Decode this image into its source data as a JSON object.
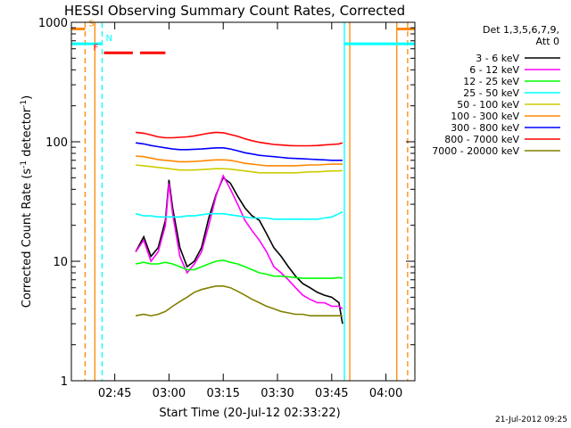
{
  "chart_data": {
    "type": "line",
    "title": "HESSI Observing Summary Count Rates, Corrected",
    "xlabel": "Start Time (20-Jul-12 02:33:22)",
    "ylabel": "Corrected Count Rate (s⁻¹ detector⁻¹)",
    "ylabel_parts": {
      "main": "Corrected Count Rate (s",
      "exp1": "-1",
      "mid": " detector",
      "exp2": "-1",
      "end": ")"
    },
    "yscale": "log",
    "ylim": [
      1,
      1000
    ],
    "xlim_minutes": [
      0,
      95
    ],
    "x_ticks": [
      {
        "minute": 12,
        "label": "02:45"
      },
      {
        "minute": 27,
        "label": "03:00"
      },
      {
        "minute": 42,
        "label": "03:15"
      },
      {
        "minute": 57,
        "label": "03:30"
      },
      {
        "minute": 72,
        "label": "03:45"
      },
      {
        "minute": 87,
        "label": "04:00"
      }
    ],
    "y_ticks": [
      {
        "value": 1,
        "label": "1"
      },
      {
        "value": 10,
        "label": "10"
      },
      {
        "value": 100,
        "label": "100"
      },
      {
        "value": 1000,
        "label": "1000"
      }
    ],
    "legend_header": [
      "Det 1,3,5,6,7,9,",
      "Att 0"
    ],
    "series": [
      {
        "name": "3 - 6 keV",
        "color": "#000000",
        "points": [
          [
            17.8,
            12
          ],
          [
            20,
            16
          ],
          [
            22,
            11
          ],
          [
            24,
            13
          ],
          [
            26,
            22
          ],
          [
            27,
            48
          ],
          [
            28,
            28
          ],
          [
            30,
            13
          ],
          [
            32,
            9
          ],
          [
            34,
            10
          ],
          [
            36,
            13
          ],
          [
            38,
            23
          ],
          [
            40,
            36
          ],
          [
            42,
            50
          ],
          [
            44,
            45
          ],
          [
            46,
            35
          ],
          [
            48,
            28
          ],
          [
            50,
            24
          ],
          [
            52,
            22
          ],
          [
            54,
            17
          ],
          [
            56,
            13
          ],
          [
            58,
            11
          ],
          [
            60,
            9
          ],
          [
            62,
            7.5
          ],
          [
            64,
            6.5
          ],
          [
            66,
            6
          ],
          [
            68,
            5.5
          ],
          [
            70,
            5.2
          ],
          [
            72,
            5
          ],
          [
            74,
            4.5
          ],
          [
            75,
            3
          ]
        ]
      },
      {
        "name": "6 - 12 keV",
        "color": "#ff00ff",
        "points": [
          [
            17.8,
            12
          ],
          [
            20,
            15
          ],
          [
            22,
            10
          ],
          [
            24,
            12
          ],
          [
            26,
            20
          ],
          [
            27,
            45
          ],
          [
            28,
            25
          ],
          [
            30,
            11
          ],
          [
            32,
            8
          ],
          [
            34,
            9.5
          ],
          [
            36,
            12
          ],
          [
            38,
            20
          ],
          [
            40,
            35
          ],
          [
            42,
            52
          ],
          [
            44,
            40
          ],
          [
            46,
            30
          ],
          [
            48,
            22
          ],
          [
            50,
            18
          ],
          [
            52,
            15
          ],
          [
            54,
            12
          ],
          [
            56,
            9
          ],
          [
            58,
            8
          ],
          [
            60,
            7
          ],
          [
            62,
            6
          ],
          [
            64,
            5.2
          ],
          [
            66,
            4.8
          ],
          [
            68,
            4.5
          ],
          [
            70,
            4.5
          ],
          [
            72,
            4.2
          ],
          [
            74,
            4.2
          ],
          [
            75,
            4
          ]
        ]
      },
      {
        "name": "12 - 25 keV",
        "color": "#00ff00",
        "points": [
          [
            17.8,
            9.5
          ],
          [
            20,
            9.8
          ],
          [
            22,
            9.5
          ],
          [
            24,
            9.5
          ],
          [
            26,
            9.8
          ],
          [
            28,
            9.5
          ],
          [
            30,
            9
          ],
          [
            32,
            8.5
          ],
          [
            34,
            8.5
          ],
          [
            36,
            9
          ],
          [
            38,
            9.5
          ],
          [
            40,
            10
          ],
          [
            42,
            10.2
          ],
          [
            44,
            9.8
          ],
          [
            46,
            9.5
          ],
          [
            48,
            9
          ],
          [
            50,
            8.5
          ],
          [
            52,
            8
          ],
          [
            54,
            7.8
          ],
          [
            56,
            7.5
          ],
          [
            58,
            7.5
          ],
          [
            60,
            7.4
          ],
          [
            62,
            7.3
          ],
          [
            64,
            7.2
          ],
          [
            66,
            7.2
          ],
          [
            68,
            7.2
          ],
          [
            70,
            7.2
          ],
          [
            72,
            7.2
          ],
          [
            74,
            7.3
          ],
          [
            75,
            7.2
          ]
        ]
      },
      {
        "name": "25 - 50 keV",
        "color": "#00ffff",
        "points": [
          [
            17.8,
            25
          ],
          [
            20,
            24
          ],
          [
            22,
            24
          ],
          [
            24,
            23.5
          ],
          [
            26,
            23.5
          ],
          [
            28,
            23.5
          ],
          [
            30,
            23.5
          ],
          [
            32,
            24
          ],
          [
            34,
            24
          ],
          [
            36,
            24.5
          ],
          [
            38,
            25
          ],
          [
            40,
            25
          ],
          [
            42,
            25
          ],
          [
            44,
            24.5
          ],
          [
            46,
            24
          ],
          [
            48,
            23.5
          ],
          [
            50,
            23
          ],
          [
            52,
            23
          ],
          [
            54,
            23
          ],
          [
            56,
            22.5
          ],
          [
            58,
            22.5
          ],
          [
            60,
            22.5
          ],
          [
            62,
            22.5
          ],
          [
            64,
            22.5
          ],
          [
            66,
            22.5
          ],
          [
            68,
            22.5
          ],
          [
            70,
            23
          ],
          [
            72,
            23.5
          ],
          [
            74,
            25
          ],
          [
            75,
            26
          ]
        ]
      },
      {
        "name": "50 - 100 keV",
        "color": "#cccc00",
        "points": [
          [
            17.8,
            64
          ],
          [
            20,
            63
          ],
          [
            22,
            62
          ],
          [
            24,
            61
          ],
          [
            26,
            60
          ],
          [
            28,
            59
          ],
          [
            30,
            58
          ],
          [
            32,
            58
          ],
          [
            34,
            58
          ],
          [
            36,
            58.5
          ],
          [
            38,
            59
          ],
          [
            40,
            59.5
          ],
          [
            42,
            59.5
          ],
          [
            44,
            59
          ],
          [
            46,
            58
          ],
          [
            48,
            57
          ],
          [
            50,
            56
          ],
          [
            52,
            55
          ],
          [
            54,
            55
          ],
          [
            56,
            55
          ],
          [
            58,
            55
          ],
          [
            60,
            55
          ],
          [
            62,
            55
          ],
          [
            64,
            55.5
          ],
          [
            66,
            56
          ],
          [
            68,
            56
          ],
          [
            70,
            56.5
          ],
          [
            72,
            57
          ],
          [
            74,
            57
          ],
          [
            75,
            57.5
          ]
        ]
      },
      {
        "name": "100 - 300 keV",
        "color": "#ff8800",
        "points": [
          [
            17.8,
            76
          ],
          [
            20,
            75
          ],
          [
            22,
            73
          ],
          [
            24,
            71
          ],
          [
            26,
            70
          ],
          [
            28,
            69
          ],
          [
            30,
            68
          ],
          [
            32,
            68
          ],
          [
            34,
            68.5
          ],
          [
            36,
            69
          ],
          [
            38,
            70
          ],
          [
            40,
            70.5
          ],
          [
            42,
            70.5
          ],
          [
            44,
            70
          ],
          [
            46,
            68
          ],
          [
            48,
            66
          ],
          [
            50,
            65
          ],
          [
            52,
            64
          ],
          [
            54,
            63
          ],
          [
            56,
            63
          ],
          [
            58,
            63
          ],
          [
            60,
            63
          ],
          [
            62,
            63
          ],
          [
            64,
            63.5
          ],
          [
            66,
            64
          ],
          [
            68,
            64
          ],
          [
            70,
            64.5
          ],
          [
            72,
            65
          ],
          [
            74,
            65
          ],
          [
            75,
            65
          ]
        ]
      },
      {
        "name": "300 - 800 keV",
        "color": "#0000ff",
        "points": [
          [
            17.8,
            98
          ],
          [
            20,
            96
          ],
          [
            22,
            93
          ],
          [
            24,
            91
          ],
          [
            26,
            89
          ],
          [
            28,
            87
          ],
          [
            30,
            86
          ],
          [
            32,
            86
          ],
          [
            34,
            86.5
          ],
          [
            36,
            87
          ],
          [
            38,
            88
          ],
          [
            40,
            89
          ],
          [
            42,
            89
          ],
          [
            44,
            87
          ],
          [
            46,
            84
          ],
          [
            48,
            81
          ],
          [
            50,
            79
          ],
          [
            52,
            77
          ],
          [
            54,
            76
          ],
          [
            56,
            75
          ],
          [
            58,
            74
          ],
          [
            60,
            73
          ],
          [
            62,
            72.5
          ],
          [
            64,
            72
          ],
          [
            66,
            71.5
          ],
          [
            68,
            71
          ],
          [
            70,
            70.5
          ],
          [
            72,
            70
          ],
          [
            74,
            70
          ],
          [
            75,
            70
          ]
        ]
      },
      {
        "name": "800 - 7000 keV",
        "color": "#ff0000",
        "points": [
          [
            17.8,
            120
          ],
          [
            20,
            118
          ],
          [
            22,
            114
          ],
          [
            24,
            110
          ],
          [
            26,
            108
          ],
          [
            28,
            108
          ],
          [
            30,
            109
          ],
          [
            32,
            110
          ],
          [
            34,
            112
          ],
          [
            36,
            115
          ],
          [
            38,
            118
          ],
          [
            40,
            120
          ],
          [
            42,
            119
          ],
          [
            44,
            115
          ],
          [
            46,
            111
          ],
          [
            48,
            106
          ],
          [
            50,
            102
          ],
          [
            52,
            99
          ],
          [
            54,
            97
          ],
          [
            56,
            95
          ],
          [
            58,
            94
          ],
          [
            60,
            93
          ],
          [
            62,
            92.5
          ],
          [
            64,
            92.5
          ],
          [
            66,
            92.5
          ],
          [
            68,
            93
          ],
          [
            70,
            94
          ],
          [
            72,
            95
          ],
          [
            74,
            96
          ],
          [
            75,
            98
          ]
        ]
      },
      {
        "name": "7000 - 20000 keV",
        "color": "#808000",
        "points": [
          [
            17.8,
            3.5
          ],
          [
            20,
            3.6
          ],
          [
            22,
            3.5
          ],
          [
            24,
            3.6
          ],
          [
            26,
            3.8
          ],
          [
            28,
            4.2
          ],
          [
            30,
            4.6
          ],
          [
            32,
            5
          ],
          [
            34,
            5.5
          ],
          [
            36,
            5.8
          ],
          [
            38,
            6
          ],
          [
            40,
            6.2
          ],
          [
            42,
            6.2
          ],
          [
            44,
            6
          ],
          [
            46,
            5.6
          ],
          [
            48,
            5.2
          ],
          [
            50,
            4.8
          ],
          [
            52,
            4.5
          ],
          [
            54,
            4.2
          ],
          [
            56,
            4
          ],
          [
            58,
            3.8
          ],
          [
            60,
            3.7
          ],
          [
            62,
            3.6
          ],
          [
            64,
            3.6
          ],
          [
            66,
            3.5
          ],
          [
            68,
            3.5
          ],
          [
            70,
            3.5
          ],
          [
            72,
            3.5
          ],
          [
            74,
            3.5
          ],
          [
            75,
            3.5
          ]
        ]
      }
    ],
    "vertical_markers": [
      {
        "minute": 3.8,
        "color": "#ff8800",
        "style": "dashed"
      },
      {
        "minute": 6.5,
        "color": "#ff8800",
        "style": "solid"
      },
      {
        "minute": 8.5,
        "color": "#00ffff",
        "style": "dashed"
      },
      {
        "minute": 75.5,
        "color": "#00ffff",
        "style": "solid"
      },
      {
        "minute": 77,
        "color": "#ff8800",
        "style": "solid"
      },
      {
        "minute": 90,
        "color": "#ff8800",
        "style": "solid"
      },
      {
        "minute": 93,
        "color": "#ff8800",
        "style": "dashed"
      }
    ],
    "status_bars": [
      {
        "label": "S",
        "color": "#ff8800",
        "value": 880,
        "segments": [
          [
            0,
            3.8
          ],
          [
            90,
            95
          ]
        ]
      },
      {
        "label": "N",
        "color": "#00ffff",
        "value": 660,
        "segments": [
          [
            0,
            8.5
          ],
          [
            75.5,
            95
          ]
        ]
      },
      {
        "label": "F",
        "color": "#ff0000",
        "value": 555,
        "segments": [
          [
            9,
            17
          ],
          [
            19,
            26
          ]
        ]
      }
    ],
    "grid": false,
    "legend_position": "right"
  },
  "footer": {
    "timestamp": "21-Jul-2012 09:25"
  }
}
